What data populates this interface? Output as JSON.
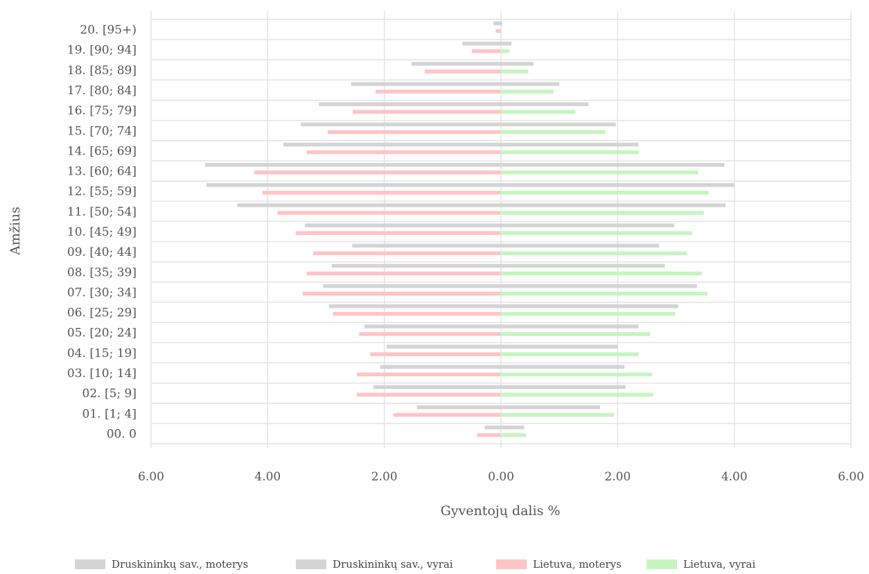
{
  "chart_data": {
    "type": "bar",
    "orientation": "horizontal",
    "layout": "population-pyramid",
    "xlabel": "Gyventojų dalis %",
    "ylabel": "Amžius",
    "xlim": [
      -6,
      6
    ],
    "x_ticks": [
      "6.00",
      "4.00",
      "2.00",
      "0.00",
      "2.00",
      "4.00",
      "6.00"
    ],
    "grid": true,
    "legend_position": "bottom",
    "categories": [
      "20. [95+)",
      "19. [90; 94]",
      "18. [85; 89]",
      "17. [80; 84]",
      "16. [75; 79]",
      "15. [70; 74]",
      "14. [65; 69]",
      "13. [60; 64]",
      "12. [55; 59]",
      "11. [50; 54]",
      "10. [45; 49]",
      "09. [40; 44]",
      "08. [35; 39]",
      "07. [30; 34]",
      "06. [25; 29]",
      "05. [20; 24]",
      "04. [15; 19]",
      "03. [10; 14]",
      "02. [5; 9]",
      "01. [1; 4]",
      "00. 0"
    ],
    "series": [
      {
        "name": "Druskininkų sav., moterys",
        "color": "#d4d4d4",
        "values": [
          -0.12,
          -0.65,
          -1.52,
          -2.56,
          -3.11,
          -3.42,
          -3.72,
          -5.06,
          -5.04,
          -4.51,
          -3.35,
          -2.54,
          -2.89,
          -3.04,
          -2.94,
          -2.33,
          -1.95,
          -2.06,
          -2.18,
          -1.43,
          -0.27
        ]
      },
      {
        "name": "Druskininkų sav., vyrai",
        "color": "#d4d4d4",
        "values": [
          0.03,
          0.19,
          0.57,
          1.01,
          1.51,
          1.98,
          2.37,
          3.84,
          4.02,
          3.86,
          2.98,
          2.72,
          2.82,
          3.37,
          3.05,
          2.37,
          2.01,
          2.13,
          2.15,
          1.71,
          0.41
        ]
      },
      {
        "name": "Lietuva, moterys",
        "color": "#ffc4c4",
        "values": [
          -0.08,
          -0.49,
          -1.3,
          -2.14,
          -2.53,
          -2.96,
          -3.32,
          -4.22,
          -4.08,
          -3.82,
          -3.51,
          -3.21,
          -3.32,
          -3.39,
          -2.87,
          -2.42,
          -2.23,
          -2.46,
          -2.46,
          -1.83,
          -0.4
        ]
      },
      {
        "name": "Lietuva, vyrai",
        "color": "#c6f5c0",
        "values": [
          0.02,
          0.16,
          0.48,
          0.91,
          1.29,
          1.8,
          2.37,
          3.39,
          3.57,
          3.49,
          3.29,
          3.2,
          3.46,
          3.55,
          3.0,
          2.57,
          2.37,
          2.6,
          2.62,
          1.95,
          0.44
        ]
      }
    ]
  }
}
